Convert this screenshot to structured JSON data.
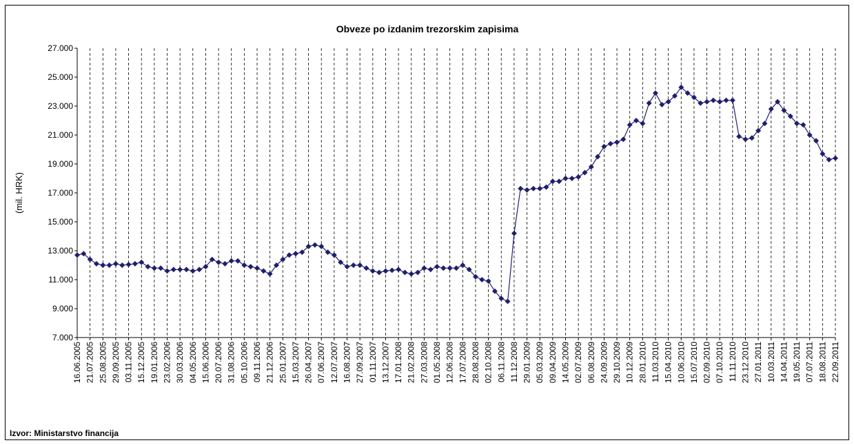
{
  "chart_data": {
    "type": "line",
    "title": "Obveze po izdanim trezorskim zapisima",
    "y_label": "(mil. HRK)",
    "source": "Izvor: Ministarstvo financija",
    "categories": [
      "16.06.2005",
      null,
      "21.07.2005",
      null,
      "25.08.2005",
      null,
      "29.09.2005",
      null,
      "03.11.2005",
      null,
      "15.12.2005",
      null,
      "19.01.2006",
      null,
      "23.02.2006",
      null,
      "30.03.2006",
      null,
      "04.05.2006",
      null,
      "15.06.2006",
      null,
      "20.07.2006",
      null,
      "31.08.2006",
      null,
      "05.10.2006",
      null,
      "09.11.2006",
      null,
      "21.12.2006",
      null,
      "25.01.2007",
      null,
      "15.03.2007",
      null,
      "26.04.2007",
      null,
      "07.06.2007",
      null,
      "12.07.2007",
      null,
      "16.08.2007",
      null,
      "27.09.2007",
      null,
      "01.11.2007",
      null,
      "13.12.2007",
      null,
      "17.01.2008",
      null,
      "21.02.2008",
      null,
      "27.03.2008",
      null,
      "01.05.2008",
      null,
      "12.06.2008",
      null,
      "17.07.2008",
      null,
      "28.08.2008",
      null,
      "02.10.2008",
      null,
      "06.11.2008",
      null,
      "11.12.2008",
      null,
      "29.01.2009",
      null,
      "05.03.2009",
      null,
      "09.04.2009",
      null,
      "14.05.2009",
      null,
      "02.07.2009",
      null,
      "06.08.2009",
      null,
      "24.09.2009",
      null,
      "29.10.2009",
      null,
      "10.12.2009",
      null,
      "28.01.2010",
      null,
      "11.03.2010",
      null,
      "15.04.2010",
      null,
      "10.06.2010",
      null,
      "15.07.2010",
      null,
      "02.09.2010",
      null,
      "07.10.2010",
      null,
      "11.11.2010",
      null,
      "23.12.2010",
      null,
      "27.01.2011",
      null,
      "10.03.2011",
      null,
      "14.04.2011",
      null,
      "19.05.2011",
      null,
      "07.07.2011",
      null,
      "18.08.2011",
      null,
      "22.09.2011"
    ],
    "series": [
      {
        "color": "#1f1f6e",
        "values": [
          12700,
          12800,
          12400,
          12100,
          12000,
          12000,
          12100,
          12000,
          12050,
          12100,
          12200,
          11900,
          11800,
          11800,
          11600,
          11700,
          11700,
          11700,
          11600,
          11700,
          11900,
          12400,
          12200,
          12100,
          12300,
          12300,
          12000,
          11900,
          11800,
          11600,
          11400,
          12000,
          12400,
          12700,
          12800,
          12900,
          13300,
          13400,
          13300,
          12900,
          12700,
          12200,
          11900,
          12000,
          12000,
          11800,
          11600,
          11500,
          11600,
          11650,
          11700,
          11500,
          11400,
          11500,
          11800,
          11700,
          11900,
          11800,
          11800,
          11800,
          12000,
          11700,
          11200,
          11000,
          10900,
          10200,
          9700,
          9500,
          14200,
          17300,
          17200,
          17300,
          17300,
          17400,
          17800,
          17800,
          18000,
          18000,
          18100,
          18400,
          18800,
          19500,
          20200,
          20400,
          20500,
          20700,
          21700,
          22000,
          21800,
          23200,
          23900,
          23100,
          23300,
          23700,
          24300,
          23900,
          23600,
          23200,
          23300,
          23400,
          23300,
          23400,
          23400,
          20900,
          20700,
          20800,
          21300,
          21800,
          22800,
          23300,
          22700,
          22300,
          21800,
          21700,
          21000,
          20600,
          19700,
          19300,
          19400
        ]
      }
    ],
    "ylim": [
      7000,
      27000
    ],
    "yticks": [
      {
        "value": 7000,
        "label": "7.000"
      },
      {
        "value": 9000,
        "label": "9.000"
      },
      {
        "value": 11000,
        "label": "11.000"
      },
      {
        "value": 13000,
        "label": "13.000"
      },
      {
        "value": 15000,
        "label": "15.000"
      },
      {
        "value": 17000,
        "label": "17.000"
      },
      {
        "value": 19000,
        "label": "19.000"
      },
      {
        "value": 21000,
        "label": "21.000"
      },
      {
        "value": 23000,
        "label": "23.000"
      },
      {
        "value": 25000,
        "label": "25.000"
      },
      {
        "value": 27000,
        "label": "27.000"
      }
    ],
    "grid": true
  }
}
